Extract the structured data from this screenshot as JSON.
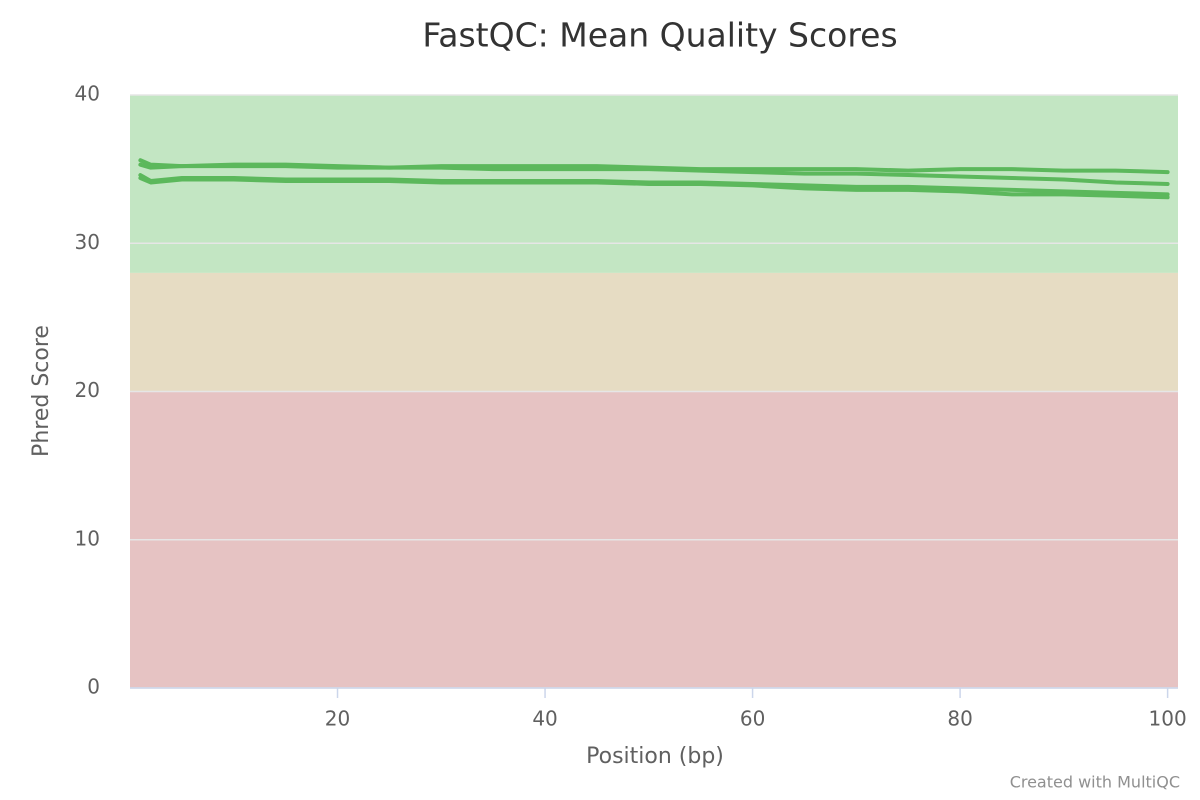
{
  "chart_data": {
    "type": "line",
    "title": "FastQC: Mean Quality Scores",
    "x_label": "Position (bp)",
    "y_label": "Phred Score",
    "credit": "Created with MultiQC",
    "x": [
      1,
      2,
      5,
      10,
      15,
      20,
      25,
      30,
      35,
      40,
      45,
      50,
      55,
      60,
      65,
      70,
      75,
      80,
      85,
      90,
      95,
      100
    ],
    "series": [
      {
        "color": "#5cb85c",
        "values": [
          35.6,
          35.3,
          35.2,
          35.3,
          35.3,
          35.2,
          35.1,
          35.2,
          35.2,
          35.2,
          35.2,
          35.1,
          35.0,
          35.0,
          35.0,
          35.0,
          34.9,
          35.0,
          35.0,
          34.9,
          34.9,
          34.8
        ]
      },
      {
        "color": "#5cb85c",
        "values": [
          35.3,
          35.1,
          35.2,
          35.2,
          35.2,
          35.1,
          35.1,
          35.1,
          35.0,
          35.0,
          35.0,
          35.0,
          34.9,
          34.8,
          34.7,
          34.7,
          34.6,
          34.5,
          34.4,
          34.3,
          34.1,
          34.0
        ]
      },
      {
        "color": "#5cb85c",
        "values": [
          34.6,
          34.2,
          34.4,
          34.4,
          34.3,
          34.3,
          34.3,
          34.2,
          34.2,
          34.2,
          34.2,
          34.1,
          34.1,
          34.0,
          33.9,
          33.8,
          33.8,
          33.7,
          33.6,
          33.5,
          33.4,
          33.3
        ]
      },
      {
        "color": "#5cb85c",
        "values": [
          34.4,
          34.1,
          34.3,
          34.3,
          34.2,
          34.2,
          34.2,
          34.1,
          34.1,
          34.1,
          34.1,
          34.0,
          34.0,
          33.9,
          33.7,
          33.6,
          33.6,
          33.5,
          33.3,
          33.3,
          33.2,
          33.1
        ]
      }
    ],
    "bands": [
      {
        "from": 28,
        "to": 40,
        "color": "#c3e6c3"
      },
      {
        "from": 20,
        "to": 28,
        "color": "#e6dcc3"
      },
      {
        "from": 0,
        "to": 20,
        "color": "#e6c3c3"
      }
    ],
    "xlim": [
      0,
      101
    ],
    "ylim": [
      0,
      40
    ],
    "xticks": [
      20,
      40,
      60,
      80,
      100
    ],
    "yticks": [
      0,
      10,
      20,
      30,
      40
    ],
    "grid": true
  }
}
